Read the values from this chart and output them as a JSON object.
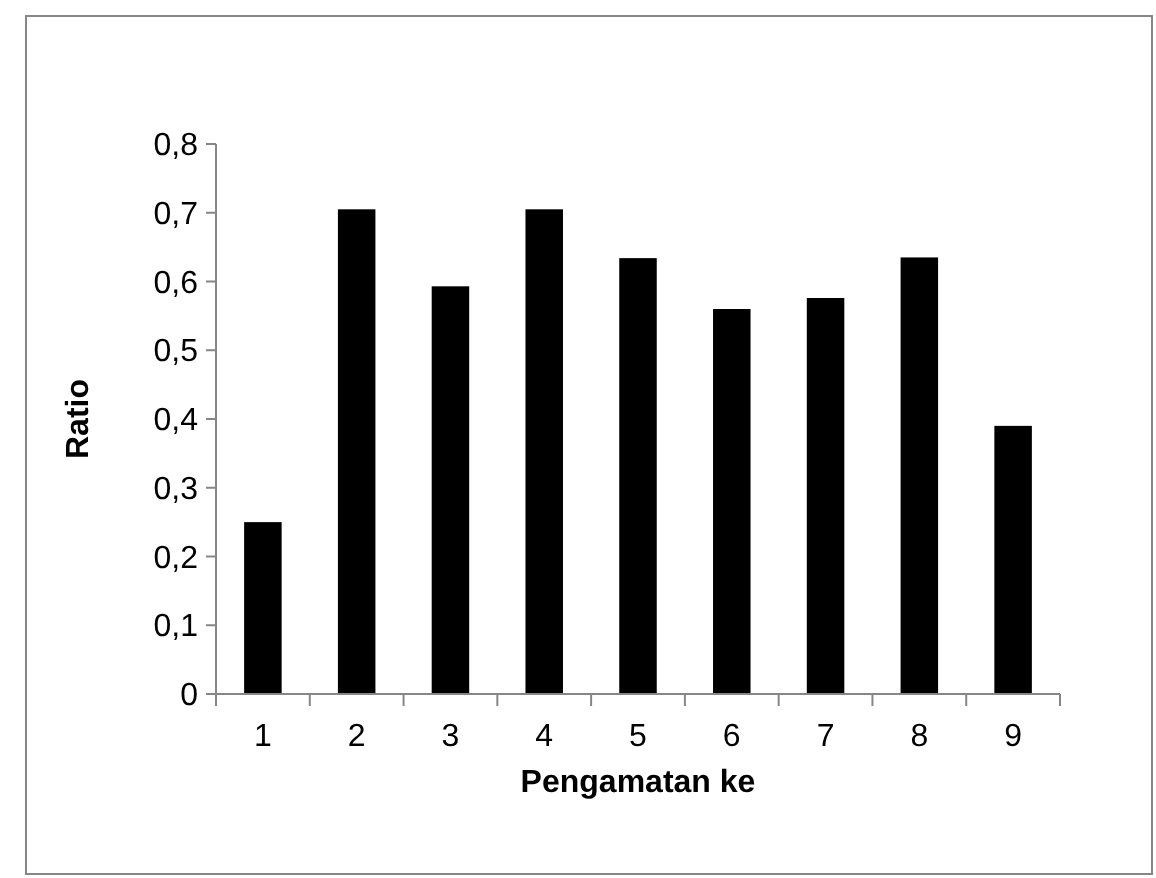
{
  "chart_data": {
    "type": "bar",
    "xlabel": "Pengamatan ke",
    "ylabel": "Ratio",
    "categories": [
      "1",
      "2",
      "3",
      "4",
      "5",
      "6",
      "7",
      "8",
      "9"
    ],
    "values": [
      0.25,
      0.705,
      0.593,
      0.705,
      0.634,
      0.56,
      0.576,
      0.635,
      0.39
    ],
    "color": "#000000",
    "ylim": [
      0,
      0.8
    ],
    "yticks": [
      0,
      {
        "value": 0.1,
        "label": "0,1"
      },
      {
        "value": 0.2,
        "label": "0,2"
      },
      {
        "value": 0.3,
        "label": "0,3"
      },
      {
        "value": 0.4,
        "label": "0,4"
      },
      {
        "value": 0.5,
        "label": "0,5"
      },
      {
        "value": 0.6,
        "label": "0,6"
      },
      {
        "value": 0.7,
        "label": "0,7"
      },
      {
        "value": 0.8,
        "label": "0,8"
      }
    ],
    "grid": false
  }
}
